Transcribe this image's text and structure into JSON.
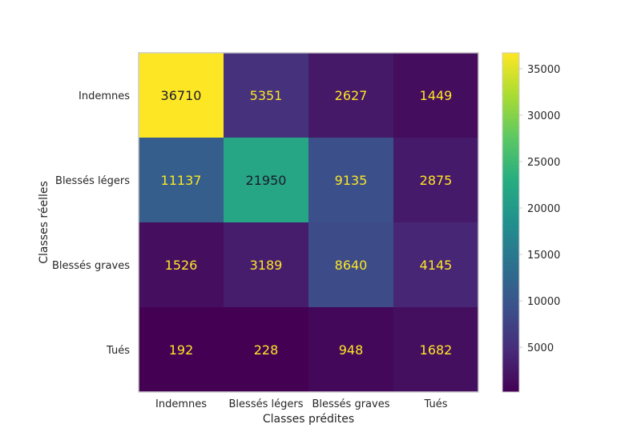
{
  "chart_data": {
    "type": "heatmap",
    "xlabel": "Classes prédites",
    "ylabel": "Classes réelles",
    "x_categories": [
      "Indemnes",
      "Blessés légers",
      "Blessés graves",
      "Tués"
    ],
    "y_categories": [
      "Indemnes",
      "Blessés légers",
      "Blessés graves",
      "Tués"
    ],
    "values": [
      [
        36710,
        5351,
        2627,
        1449
      ],
      [
        11137,
        21950,
        9135,
        2875
      ],
      [
        1526,
        3189,
        8640,
        4145
      ],
      [
        192,
        228,
        948,
        1682
      ]
    ],
    "colormap": "viridis",
    "colorbar": {
      "min": 192,
      "max": 36710,
      "ticks": [
        5000,
        10000,
        15000,
        20000,
        25000,
        30000,
        35000
      ],
      "tick_labels": [
        "5000",
        "10000",
        "15000",
        "20000",
        "25000",
        "30000",
        "35000"
      ]
    },
    "text_colors": {
      "on_dark": "#fde725",
      "on_light": "#1a1a2e"
    },
    "frame_color": "#cccccc",
    "grid": false
  }
}
